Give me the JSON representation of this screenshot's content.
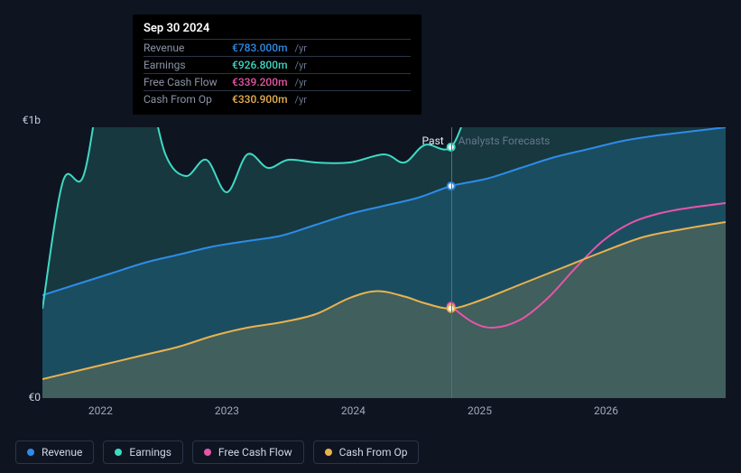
{
  "chart": {
    "background_color": "#0e1521",
    "currency_prefix": "€",
    "y_axis": {
      "top": {
        "label": "€1b",
        "value": 1000
      },
      "bottom": {
        "label": "€0",
        "value": 0
      }
    },
    "x_axis": {
      "ticks": [
        "2022",
        "2023",
        "2024",
        "2025",
        "2026"
      ],
      "tick_positions_pct": [
        8.5,
        27,
        45.5,
        64,
        82.5
      ],
      "vline_pct": 59.8
    },
    "past_label": "Past",
    "forecast_label": "Analysts Forecasts",
    "series": [
      {
        "key": "revenue",
        "label": "Revenue",
        "color": "#2d8ce8",
        "fill_opacity": 0.22,
        "points": [
          [
            0,
            380
          ],
          [
            5,
            420
          ],
          [
            10,
            460
          ],
          [
            15,
            500
          ],
          [
            20,
            530
          ],
          [
            25,
            560
          ],
          [
            30,
            580
          ],
          [
            35,
            600
          ],
          [
            40,
            640
          ],
          [
            45,
            680
          ],
          [
            50,
            710
          ],
          [
            55,
            740
          ],
          [
            59.8,
            783
          ],
          [
            65,
            810
          ],
          [
            70,
            850
          ],
          [
            75,
            890
          ],
          [
            80,
            920
          ],
          [
            85,
            950
          ],
          [
            90,
            970
          ],
          [
            95,
            985
          ],
          [
            100,
            1000
          ]
        ],
        "marker_at": 59.8
      },
      {
        "key": "earnings",
        "label": "Earnings",
        "color": "#3fd9c4",
        "fill_opacity": 0.18,
        "points": [
          [
            0,
            330
          ],
          [
            3,
            800
          ],
          [
            6,
            820
          ],
          [
            9,
            1210
          ],
          [
            12,
            1230
          ],
          [
            15,
            1190
          ],
          [
            18,
            900
          ],
          [
            21,
            820
          ],
          [
            24,
            880
          ],
          [
            27,
            760
          ],
          [
            30,
            900
          ],
          [
            33,
            850
          ],
          [
            36,
            880
          ],
          [
            40,
            870
          ],
          [
            45,
            870
          ],
          [
            50,
            900
          ],
          [
            53,
            870
          ],
          [
            56,
            935
          ],
          [
            59.8,
            926.8
          ],
          [
            63,
            1100
          ],
          [
            67,
            1190
          ],
          [
            72,
            1225
          ],
          [
            77,
            1230
          ],
          [
            82,
            1215
          ],
          [
            87,
            1170
          ],
          [
            92,
            1125
          ],
          [
            96,
            1100
          ],
          [
            100,
            1120
          ]
        ],
        "marker_at": 59.8
      },
      {
        "key": "fcf",
        "label": "Free Cash Flow",
        "color": "#e855a8",
        "fill_opacity": 0,
        "points": [
          [
            59.8,
            339.2
          ],
          [
            63,
            280
          ],
          [
            66,
            260
          ],
          [
            70,
            290
          ],
          [
            74,
            370
          ],
          [
            78,
            480
          ],
          [
            82,
            580
          ],
          [
            86,
            645
          ],
          [
            90,
            680
          ],
          [
            94,
            700
          ],
          [
            100,
            720
          ]
        ],
        "marker_at": 59.8
      },
      {
        "key": "cashop",
        "label": "Cash From Op",
        "color": "#eab24f",
        "fill_opacity": 0.18,
        "points": [
          [
            0,
            70
          ],
          [
            5,
            100
          ],
          [
            10,
            130
          ],
          [
            15,
            160
          ],
          [
            20,
            190
          ],
          [
            25,
            230
          ],
          [
            30,
            260
          ],
          [
            35,
            280
          ],
          [
            40,
            310
          ],
          [
            45,
            370
          ],
          [
            49,
            395
          ],
          [
            53,
            375
          ],
          [
            56,
            350
          ],
          [
            59.8,
            330.9
          ],
          [
            64,
            360
          ],
          [
            70,
            420
          ],
          [
            76,
            480
          ],
          [
            82,
            540
          ],
          [
            88,
            595
          ],
          [
            94,
            625
          ],
          [
            100,
            650
          ]
        ],
        "marker_at": 59.8
      }
    ]
  },
  "tooltip": {
    "date": "Sep 30 2024",
    "unit": "/yr",
    "rows": [
      {
        "label": "Revenue",
        "value": "€783.000m",
        "color": "#2d8ce8"
      },
      {
        "label": "Earnings",
        "value": "€926.800m",
        "color": "#3fd9c4"
      },
      {
        "label": "Free Cash Flow",
        "value": "€339.200m",
        "color": "#e855a8"
      },
      {
        "label": "Cash From Op",
        "value": "€330.900m",
        "color": "#eab24f"
      }
    ]
  },
  "legend": [
    {
      "label": "Revenue",
      "color": "#2d8ce8"
    },
    {
      "label": "Earnings",
      "color": "#3fd9c4"
    },
    {
      "label": "Free Cash Flow",
      "color": "#e855a8"
    },
    {
      "label": "Cash From Op",
      "color": "#eab24f"
    }
  ]
}
